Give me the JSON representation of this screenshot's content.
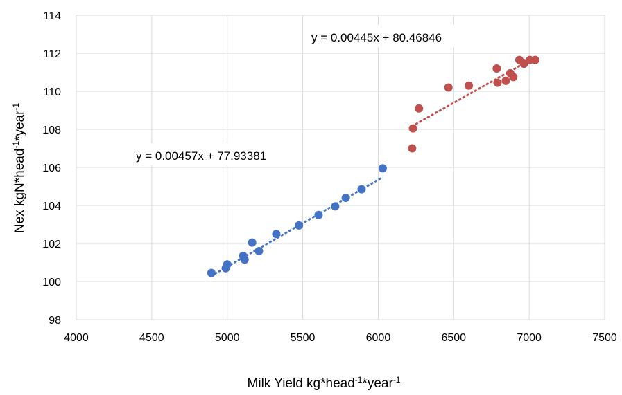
{
  "chart_data": {
    "type": "scatter",
    "title": "",
    "xlabel": {
      "base": "Milk Yield kg*head",
      "sup1": "-1",
      "mid": "*year",
      "sup2": "-1"
    },
    "ylabel": {
      "base": "Nex kgN*head",
      "sup1": "-1",
      "mid": "*year",
      "sup2": "-1"
    },
    "xlim": [
      4000,
      7500
    ],
    "ylim": [
      98,
      114
    ],
    "x_ticks": [
      "4000",
      "4500",
      "5000",
      "5500",
      "6000",
      "6500",
      "7000",
      "7500"
    ],
    "y_ticks": [
      "98",
      "100",
      "102",
      "104",
      "106",
      "108",
      "110",
      "112",
      "114"
    ],
    "grid": true,
    "legend": "none",
    "series": [
      {
        "color": "#4472C4",
        "points": [
          [
            4895,
            100.45
          ],
          [
            4990,
            100.7
          ],
          [
            5000,
            100.9
          ],
          [
            5105,
            101.35
          ],
          [
            5115,
            101.15
          ],
          [
            5165,
            102.05
          ],
          [
            5210,
            101.6
          ],
          [
            5325,
            102.5
          ],
          [
            5475,
            102.95
          ],
          [
            5605,
            103.5
          ],
          [
            5715,
            103.95
          ],
          [
            5785,
            104.4
          ],
          [
            5890,
            104.85
          ],
          [
            6030,
            105.95
          ]
        ],
        "trendline": {
          "equation": "y = 0.00457x  + 77.93381",
          "slope": 0.00457,
          "intercept": 77.93381,
          "x_range": [
            4895,
            6030
          ]
        }
      },
      {
        "color": "#C0504D",
        "points": [
          [
            6225,
            107.0
          ],
          [
            6230,
            108.05
          ],
          [
            6270,
            109.1
          ],
          [
            6465,
            110.2
          ],
          [
            6600,
            110.3
          ],
          [
            6785,
            111.2
          ],
          [
            6790,
            110.45
          ],
          [
            6845,
            110.55
          ],
          [
            6875,
            110.95
          ],
          [
            6895,
            110.75
          ],
          [
            6935,
            111.65
          ],
          [
            6965,
            111.45
          ],
          [
            7005,
            111.65
          ],
          [
            7040,
            111.65
          ]
        ],
        "trendline": {
          "equation": "y = 0.00445x  + 80.46846",
          "slope": 0.00445,
          "intercept": 80.46846,
          "x_range": [
            6225,
            7040
          ]
        }
      }
    ]
  }
}
